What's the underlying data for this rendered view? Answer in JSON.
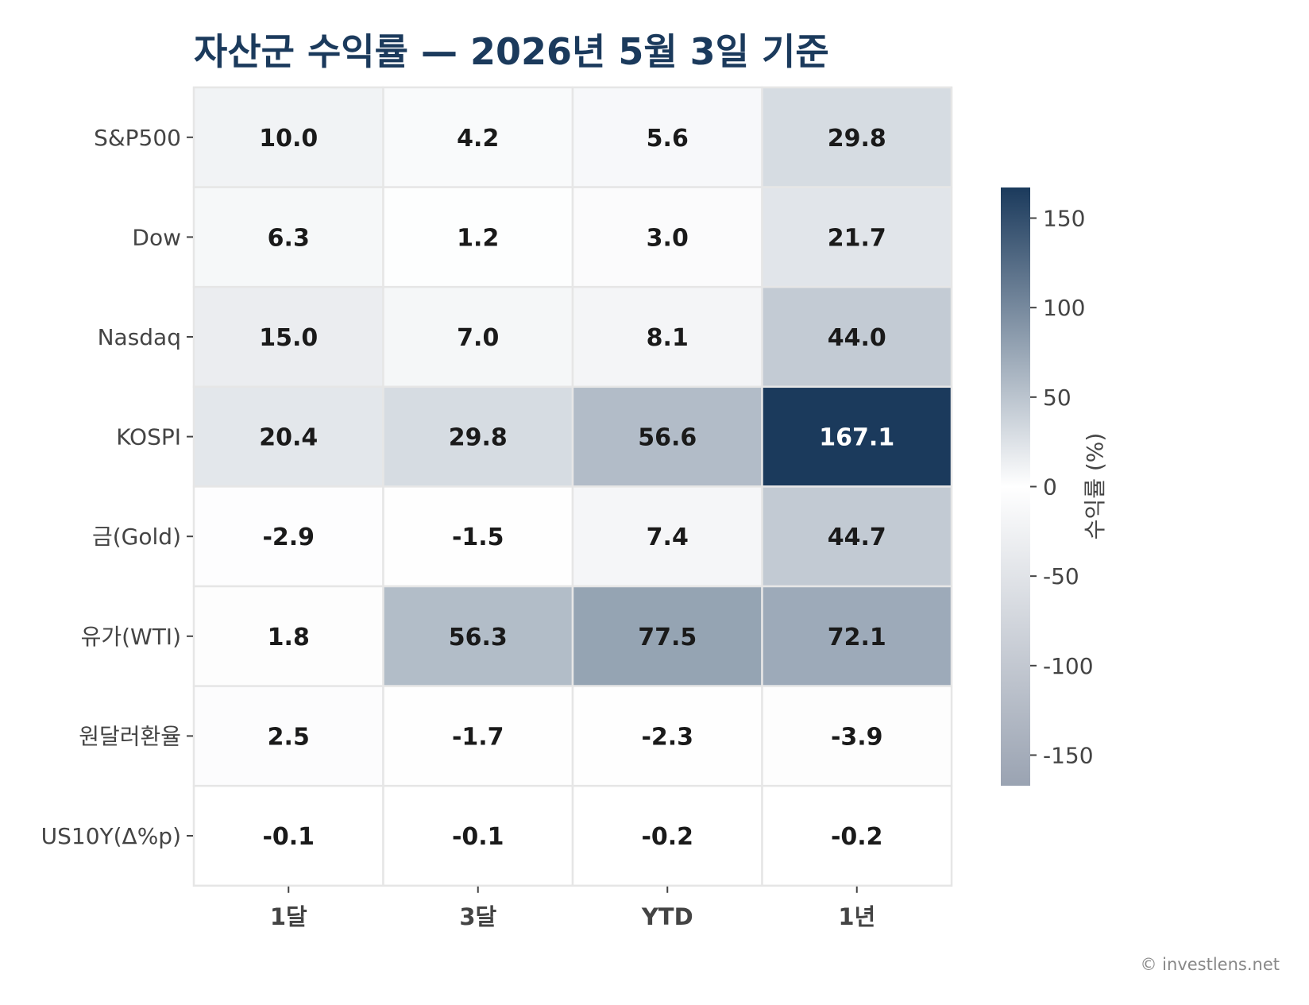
{
  "chart_data": {
    "type": "heatmap",
    "title": "자산군 수익률 — 2026년 5월 3일 기준",
    "rows": [
      "S&P500",
      "Dow",
      "Nasdaq",
      "KOSPI",
      "금(Gold)",
      "유가(WTI)",
      "원달러환율",
      "US10Y(Δ%p)"
    ],
    "columns": [
      "1달",
      "3달",
      "YTD",
      "1년"
    ],
    "values": [
      [
        10.0,
        4.2,
        5.6,
        29.8
      ],
      [
        6.3,
        1.2,
        3.0,
        21.7
      ],
      [
        15.0,
        7.0,
        8.1,
        44.0
      ],
      [
        20.4,
        29.8,
        56.6,
        167.1
      ],
      [
        -2.9,
        -1.5,
        7.4,
        44.7
      ],
      [
        1.8,
        56.3,
        77.5,
        72.1
      ],
      [
        2.5,
        -1.7,
        -2.3,
        -3.9
      ],
      [
        -0.1,
        -0.1,
        -0.2,
        -0.2
      ]
    ],
    "value_labels": [
      [
        "10.0",
        "4.2",
        "5.6",
        "29.8"
      ],
      [
        "6.3",
        "1.2",
        "3.0",
        "21.7"
      ],
      [
        "15.0",
        "7.0",
        "8.1",
        "44.0"
      ],
      [
        "20.4",
        "29.8",
        "56.6",
        "167.1"
      ],
      [
        "-2.9",
        "-1.5",
        "7.4",
        "44.7"
      ],
      [
        "1.8",
        "56.3",
        "77.5",
        "72.1"
      ],
      [
        "2.5",
        "-1.7",
        "-2.3",
        "-3.9"
      ],
      [
        "-0.1",
        "-0.1",
        "-0.2",
        "-0.2"
      ]
    ],
    "colorbar": {
      "label": "수익률 (%)",
      "range": [
        -167.1,
        167.1
      ],
      "ticks": [
        150,
        100,
        50,
        0,
        -50,
        -100,
        -150
      ],
      "tick_labels": [
        "150",
        "100",
        "50",
        "0",
        "-50",
        "-100",
        "-150"
      ],
      "colors": {
        "low": "#9aa3b2",
        "mid": "#ffffff",
        "high": "#1b3a5c"
      }
    },
    "text_colors": {
      "dark": "#1a1a1a",
      "light": "#ffffff"
    },
    "grid_line_color": "#e6e6e6",
    "title_color": "#1b3a5c"
  },
  "credit": "© investlens.net"
}
